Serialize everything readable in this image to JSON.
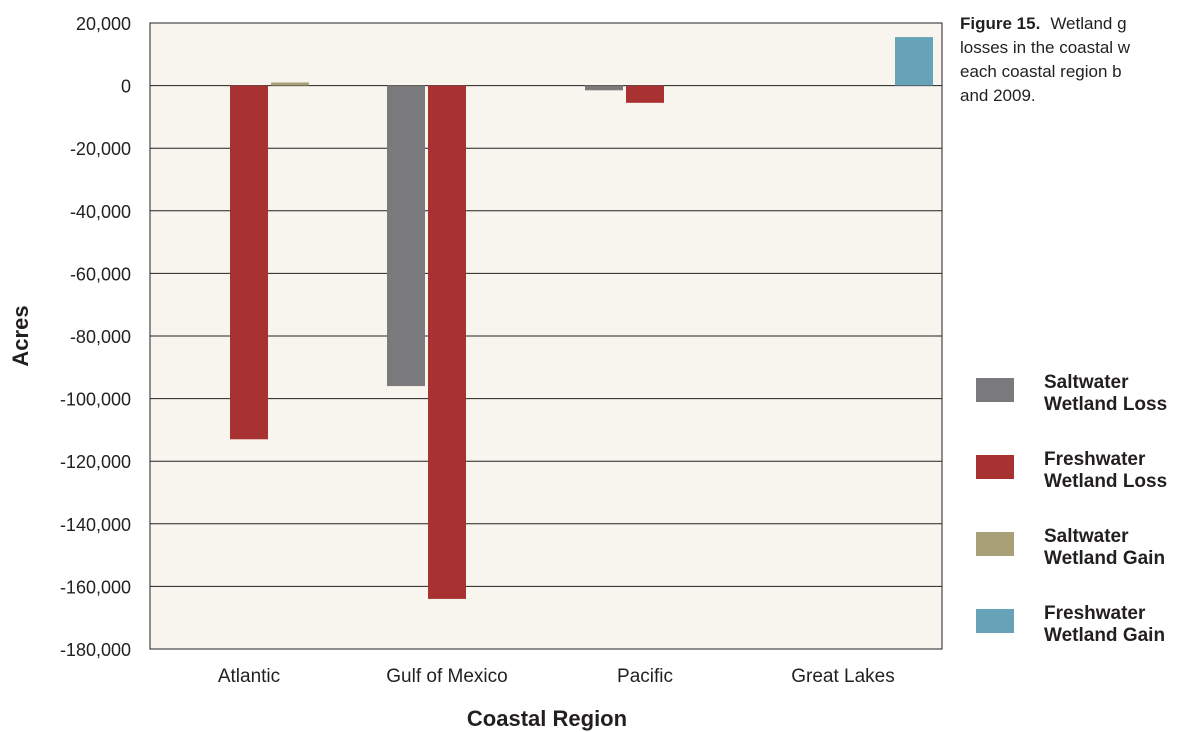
{
  "caption": {
    "label": "Figure 15.",
    "lines": [
      "Wetland g",
      "losses in the coastal w",
      "each coastal region b",
      "and 2009."
    ]
  },
  "chart_data": {
    "type": "bar",
    "xlabel": "Coastal Region",
    "ylabel": "Acres",
    "ylim": [
      -180000,
      20000
    ],
    "yticks": [
      20000,
      0,
      -20000,
      -40000,
      -60000,
      -80000,
      -100000,
      -120000,
      -140000,
      -160000,
      -180000
    ],
    "ytick_labels": [
      "20,000",
      "0",
      "-20,000",
      "-40,000",
      "-60,000",
      "-80,000",
      "-100,000",
      "-120,000",
      "-140,000",
      "-160,000",
      "-180,000"
    ],
    "grid": true,
    "legend_position": "right",
    "background_color": "#f8f5ee",
    "categories": [
      "Atlantic",
      "Gulf of Mexico",
      "Pacific",
      "Great Lakes"
    ],
    "series": [
      {
        "name": "Saltwater Wetland Loss",
        "color": "#7a7a7d",
        "values": [
          0,
          -96000,
          -1500,
          0
        ]
      },
      {
        "name": "Freshwater Wetland Loss",
        "color": "#a83232",
        "values": [
          -113000,
          -164000,
          -5500,
          0
        ]
      },
      {
        "name": "Saltwater Wetland Gain",
        "color": "#a8a077",
        "values": [
          1000,
          0,
          0,
          0
        ]
      },
      {
        "name": "Freshwater Wetland Gain",
        "color": "#66a2b8",
        "values": [
          0,
          0,
          0,
          15500
        ]
      }
    ],
    "legend": [
      {
        "line1": "Saltwater",
        "line2": "Wetland Loss",
        "color": "#7a7a7d"
      },
      {
        "line1": "Freshwater",
        "line2": "Wetland Loss",
        "color": "#a83232"
      },
      {
        "line1": "Saltwater",
        "line2": "Wetland Gain",
        "color": "#a8a077"
      },
      {
        "line1": "Freshwater",
        "line2": "Wetland Gain",
        "color": "#66a2b8"
      }
    ]
  }
}
